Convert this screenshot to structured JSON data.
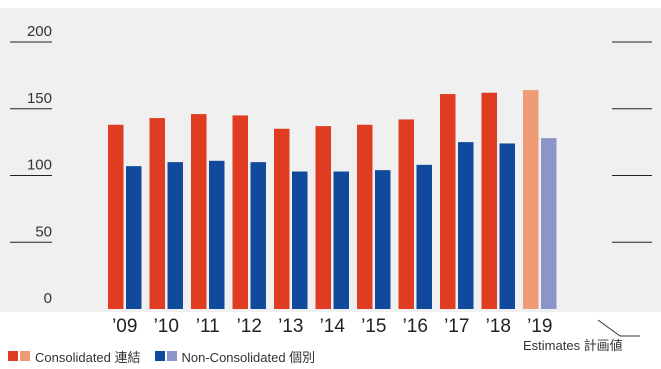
{
  "chart_data": {
    "type": "bar",
    "categories": [
      "’09",
      "’10",
      "’11",
      "’12",
      "’13",
      "’14",
      "’15",
      "’16",
      "’17",
      "’18",
      "’19"
    ],
    "series": [
      {
        "name": "Consolidated 連結",
        "values": [
          138,
          143,
          146,
          145,
          135,
          137,
          138,
          142,
          161,
          162,
          164
        ]
      },
      {
        "name": "Non-Consolidated 個別",
        "values": [
          107,
          110,
          111,
          110,
          103,
          103,
          104,
          108,
          125,
          124,
          128
        ]
      }
    ],
    "estimate_categories": [
      "’19"
    ],
    "yticks": [
      0,
      50,
      100,
      150,
      200
    ],
    "ylim": [
      0,
      200
    ],
    "title": "",
    "xlabel": "",
    "ylabel": "",
    "annotation": "Estimates 計画値",
    "legend_position": "bottom-left",
    "colors": {
      "consolidated": "#df3c22",
      "consolidated_estimate": "#ee9b76",
      "nonconsolidated": "#114a9c",
      "nonconsolidated_estimate": "#8c95c8",
      "plot_background": "#f0f0f0",
      "gridline": "#222222"
    }
  }
}
